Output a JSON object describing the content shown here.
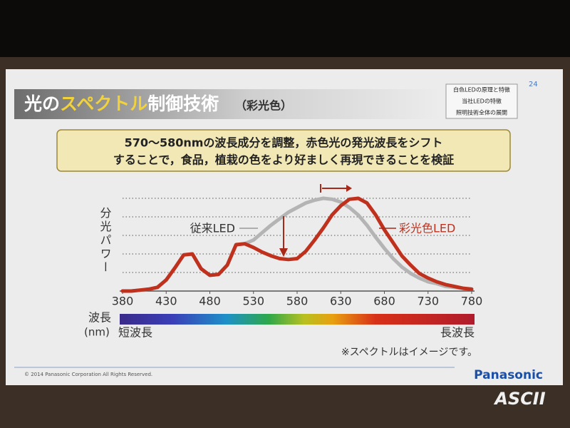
{
  "slide": {
    "title": [
      "光の",
      "スペクトル",
      "制御技術"
    ],
    "title_note": "（彩光色）",
    "page_number": "24",
    "menu": [
      "白色LEDの原理と特徴",
      "当社LEDの特徴",
      "照明技術全体の展開"
    ],
    "callout": [
      "570～580nmの波長成分を調整，赤色光の発光波長をシフト",
      "することで，食品，植栽の色をより好ましく再現できることを検証"
    ],
    "copyright": "© 2014 Panasonic  Corporation  All Rights  Reserved.",
    "brand": "Panasonic",
    "watermark": "ASCII"
  },
  "chart_data": {
    "type": "line",
    "y_label": "分光パワー",
    "x_label": "波長",
    "x_unit": "(nm)",
    "short_label": "短波長",
    "long_label": "長波長",
    "note": "※スペクトルはイメージです。",
    "x": [
      380,
      390,
      400,
      410,
      420,
      430,
      440,
      450,
      460,
      470,
      480,
      490,
      500,
      510,
      520,
      530,
      540,
      550,
      560,
      570,
      580,
      590,
      600,
      610,
      620,
      630,
      640,
      650,
      660,
      670,
      680,
      690,
      700,
      710,
      720,
      730,
      740,
      750,
      760,
      770,
      780
    ],
    "series": [
      {
        "name": "従来LED",
        "color": "#b4b4b4",
        "values": [
          0,
          0,
          1,
          2,
          4,
          12,
          25,
          39,
          40,
          24,
          17,
          18,
          28,
          50,
          51,
          55,
          63,
          71,
          78,
          85,
          90,
          95,
          98,
          100,
          99,
          96,
          90,
          82,
          71,
          58,
          46,
          35,
          26,
          19,
          14,
          10,
          8,
          5,
          4,
          3,
          2
        ]
      },
      {
        "name": "彩光色LED",
        "color": "#c0311d",
        "values": [
          0,
          0,
          1,
          2,
          4,
          12,
          25,
          39,
          40,
          24,
          17,
          18,
          28,
          50,
          51,
          47,
          42,
          38,
          35,
          34,
          35,
          43,
          55,
          68,
          82,
          92,
          99,
          100,
          95,
          82,
          66,
          52,
          38,
          28,
          19,
          14,
          10,
          7,
          5,
          3,
          2
        ]
      }
    ],
    "xlim": [
      380,
      780
    ],
    "xticks": [
      380,
      430,
      480,
      530,
      580,
      630,
      680,
      730,
      780
    ],
    "ylim": [
      0,
      100
    ],
    "yticks": [
      20,
      40,
      60,
      80,
      100
    ],
    "grid": true
  }
}
